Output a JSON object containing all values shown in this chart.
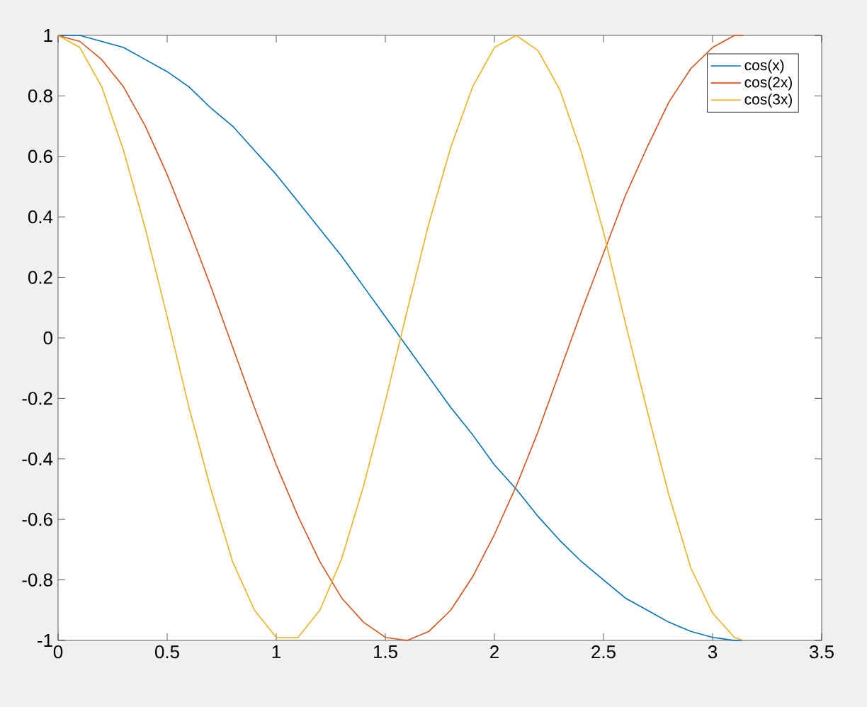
{
  "chart_data": {
    "type": "line",
    "x": [
      0,
      0.1,
      0.2,
      0.3,
      0.4,
      0.5,
      0.6,
      0.7,
      0.8,
      0.9,
      1.0,
      1.1,
      1.2,
      1.3,
      1.4,
      1.5,
      1.6,
      1.7,
      1.8,
      1.9,
      2.0,
      2.1,
      2.2,
      2.3,
      2.4,
      2.5,
      2.6,
      2.7,
      2.8,
      2.9,
      3.0,
      3.1,
      3.14
    ],
    "series": [
      {
        "name": "cos(x)",
        "color": "#0072bd",
        "values": [
          1,
          1.0,
          0.98,
          0.96,
          0.92,
          0.88,
          0.83,
          0.76,
          0.7,
          0.62,
          0.54,
          0.45,
          0.36,
          0.27,
          0.17,
          0.07,
          -0.03,
          -0.13,
          -0.23,
          -0.32,
          -0.42,
          -0.5,
          -0.59,
          -0.67,
          -0.74,
          -0.8,
          -0.86,
          -0.9,
          -0.94,
          -0.97,
          -0.99,
          -1,
          -1
        ]
      },
      {
        "name": "cos(2x)",
        "color": "#d95319",
        "values": [
          1,
          0.98,
          0.92,
          0.83,
          0.7,
          0.54,
          0.36,
          0.17,
          -0.03,
          -0.23,
          -0.42,
          -0.59,
          -0.74,
          -0.86,
          -0.94,
          -0.99,
          -1,
          -0.97,
          -0.9,
          -0.79,
          -0.65,
          -0.49,
          -0.31,
          -0.11,
          0.09,
          0.28,
          0.47,
          0.63,
          0.78,
          0.89,
          0.96,
          1,
          1
        ]
      },
      {
        "name": "cos(3x)",
        "color": "#edb120",
        "values": [
          1,
          0.96,
          0.83,
          0.62,
          0.36,
          0.07,
          -0.23,
          -0.5,
          -0.74,
          -0.9,
          -0.99,
          -0.99,
          -0.9,
          -0.73,
          -0.49,
          -0.21,
          0.09,
          0.38,
          0.63,
          0.83,
          0.96,
          1,
          0.95,
          0.82,
          0.61,
          0.35,
          0.05,
          -0.24,
          -0.52,
          -0.76,
          -0.91,
          -0.99,
          -1
        ]
      }
    ],
    "xlim": [
      0,
      3.5
    ],
    "xticks": [
      0,
      0.5,
      1,
      1.5,
      2,
      2.5,
      3,
      3.5
    ],
    "ylim": [
      -1,
      1
    ],
    "yticks": [
      -1,
      -0.8,
      -0.6,
      -0.4,
      -0.2,
      0,
      0.2,
      0.4,
      0.6,
      0.8,
      1
    ],
    "grid": false,
    "legend": "top right",
    "marker": "none",
    "line_style": "solid"
  }
}
